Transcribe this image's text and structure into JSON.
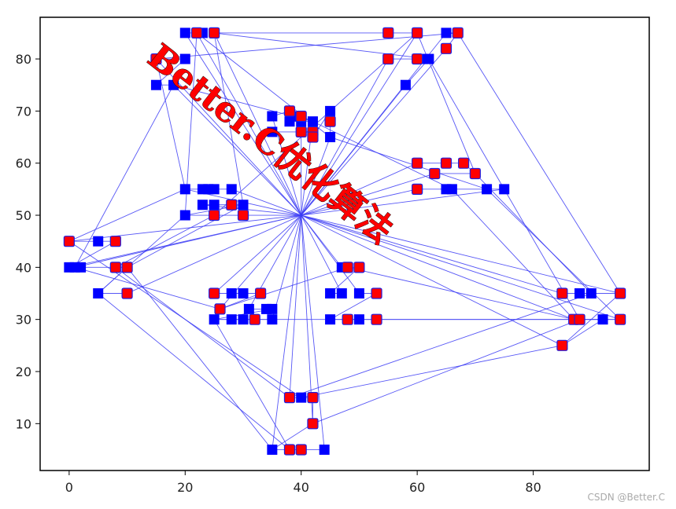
{
  "chart_data": {
    "type": "scatter",
    "title": "",
    "xlabel": "",
    "ylabel": "",
    "xlim": [
      -5,
      100
    ],
    "ylim": [
      1,
      88
    ],
    "xticks": [
      "0",
      "20",
      "40",
      "60",
      "80"
    ],
    "yticks": [
      "10",
      "20",
      "30",
      "40",
      "50",
      "60",
      "70",
      "80"
    ],
    "grid": false,
    "depot": [
      40,
      50
    ],
    "series": [
      {
        "role": "customer",
        "marker": "square",
        "color": "#0000ff",
        "points": [
          [
            20,
            85
          ],
          [
            22,
            85
          ],
          [
            23,
            85
          ],
          [
            25,
            85
          ],
          [
            55,
            85
          ],
          [
            60,
            85
          ],
          [
            65,
            85
          ],
          [
            67,
            85
          ],
          [
            15,
            80
          ],
          [
            20,
            80
          ],
          [
            55,
            80
          ],
          [
            60,
            80
          ],
          [
            61,
            80
          ],
          [
            62,
            80
          ],
          [
            65,
            82
          ],
          [
            15,
            75
          ],
          [
            18,
            75
          ],
          [
            58,
            75
          ],
          [
            35,
            69
          ],
          [
            38,
            70
          ],
          [
            39,
            69
          ],
          [
            38,
            68
          ],
          [
            40,
            68
          ],
          [
            42,
            68
          ],
          [
            40,
            66
          ],
          [
            35,
            66
          ],
          [
            42,
            66
          ],
          [
            42,
            65
          ],
          [
            45,
            70
          ],
          [
            45,
            68
          ],
          [
            45,
            65
          ],
          [
            60,
            60
          ],
          [
            65,
            60
          ],
          [
            68,
            60
          ],
          [
            70,
            58
          ],
          [
            63,
            58
          ],
          [
            60,
            55
          ],
          [
            65,
            55
          ],
          [
            66,
            55
          ],
          [
            72,
            55
          ],
          [
            75,
            55
          ],
          [
            20,
            55
          ],
          [
            23,
            55
          ],
          [
            24,
            55
          ],
          [
            25,
            55
          ],
          [
            28,
            55
          ],
          [
            23,
            52
          ],
          [
            25,
            52
          ],
          [
            28,
            52
          ],
          [
            30,
            52
          ],
          [
            20,
            50
          ],
          [
            25,
            50
          ],
          [
            30,
            50
          ],
          [
            0,
            45
          ],
          [
            5,
            45
          ],
          [
            8,
            45
          ],
          [
            0,
            40
          ],
          [
            1,
            40
          ],
          [
            2,
            40
          ],
          [
            8,
            40
          ],
          [
            10,
            40
          ],
          [
            5,
            35
          ],
          [
            10,
            35
          ],
          [
            47,
            40
          ],
          [
            48,
            40
          ],
          [
            50,
            40
          ],
          [
            45,
            35
          ],
          [
            47,
            35
          ],
          [
            50,
            35
          ],
          [
            53,
            35
          ],
          [
            45,
            30
          ],
          [
            48,
            30
          ],
          [
            50,
            30
          ],
          [
            53,
            30
          ],
          [
            25,
            35
          ],
          [
            28,
            35
          ],
          [
            30,
            35
          ],
          [
            33,
            35
          ],
          [
            26,
            32
          ],
          [
            31,
            32
          ],
          [
            34,
            32
          ],
          [
            35,
            32
          ],
          [
            25,
            30
          ],
          [
            28,
            30
          ],
          [
            30,
            30
          ],
          [
            32,
            30
          ],
          [
            35,
            30
          ],
          [
            85,
            35
          ],
          [
            88,
            35
          ],
          [
            90,
            35
          ],
          [
            95,
            35
          ],
          [
            87,
            30
          ],
          [
            88,
            30
          ],
          [
            92,
            30
          ],
          [
            95,
            30
          ],
          [
            85,
            25
          ],
          [
            38,
            15
          ],
          [
            40,
            15
          ],
          [
            42,
            15
          ],
          [
            42,
            10
          ],
          [
            35,
            5
          ],
          [
            38,
            5
          ],
          [
            40,
            5
          ],
          [
            44,
            5
          ]
        ]
      },
      {
        "role": "selected",
        "marker": "square",
        "color": "#ff0000",
        "points": [
          [
            22,
            85
          ],
          [
            25,
            85
          ],
          [
            55,
            85
          ],
          [
            60,
            85
          ],
          [
            67,
            85
          ],
          [
            15,
            80
          ],
          [
            55,
            80
          ],
          [
            60,
            80
          ],
          [
            65,
            82
          ],
          [
            38,
            70
          ],
          [
            40,
            69
          ],
          [
            40,
            66
          ],
          [
            42,
            66
          ],
          [
            42,
            65
          ],
          [
            45,
            68
          ],
          [
            60,
            60
          ],
          [
            65,
            60
          ],
          [
            68,
            60
          ],
          [
            70,
            58
          ],
          [
            63,
            58
          ],
          [
            60,
            55
          ],
          [
            28,
            52
          ],
          [
            25,
            50
          ],
          [
            30,
            50
          ],
          [
            0,
            45
          ],
          [
            8,
            45
          ],
          [
            8,
            40
          ],
          [
            10,
            40
          ],
          [
            10,
            35
          ],
          [
            48,
            40
          ],
          [
            50,
            40
          ],
          [
            53,
            35
          ],
          [
            48,
            30
          ],
          [
            53,
            30
          ],
          [
            25,
            35
          ],
          [
            26,
            32
          ],
          [
            33,
            35
          ],
          [
            32,
            30
          ],
          [
            85,
            35
          ],
          [
            95,
            35
          ],
          [
            87,
            30
          ],
          [
            88,
            30
          ],
          [
            95,
            30
          ],
          [
            85,
            25
          ],
          [
            38,
            15
          ],
          [
            42,
            15
          ],
          [
            42,
            10
          ],
          [
            38,
            5
          ],
          [
            40,
            5
          ]
        ]
      }
    ],
    "routes": [
      [
        [
          40,
          50
        ],
        [
          20,
          85
        ],
        [
          23,
          85
        ],
        [
          22,
          85
        ],
        [
          40,
          50
        ]
      ],
      [
        [
          40,
          50
        ],
        [
          25,
          85
        ],
        [
          55,
          85
        ],
        [
          60,
          85
        ],
        [
          40,
          50
        ]
      ],
      [
        [
          40,
          50
        ],
        [
          65,
          85
        ],
        [
          67,
          85
        ],
        [
          65,
          82
        ],
        [
          40,
          50
        ]
      ],
      [
        [
          40,
          50
        ],
        [
          15,
          80
        ],
        [
          20,
          80
        ],
        [
          15,
          75
        ],
        [
          18,
          75
        ],
        [
          40,
          50
        ]
      ],
      [
        [
          40,
          50
        ],
        [
          55,
          80
        ],
        [
          60,
          80
        ],
        [
          61,
          80
        ],
        [
          62,
          80
        ],
        [
          58,
          75
        ],
        [
          40,
          50
        ]
      ],
      [
        [
          40,
          50
        ],
        [
          35,
          69
        ],
        [
          38,
          70
        ],
        [
          39,
          69
        ],
        [
          38,
          68
        ],
        [
          40,
          68
        ],
        [
          42,
          68
        ],
        [
          40,
          50
        ]
      ],
      [
        [
          40,
          50
        ],
        [
          40,
          66
        ],
        [
          35,
          66
        ],
        [
          42,
          66
        ],
        [
          42,
          65
        ],
        [
          45,
          70
        ],
        [
          45,
          68
        ],
        [
          45,
          65
        ],
        [
          40,
          50
        ]
      ],
      [
        [
          40,
          50
        ],
        [
          60,
          60
        ],
        [
          65,
          60
        ],
        [
          68,
          60
        ],
        [
          70,
          58
        ],
        [
          63,
          58
        ],
        [
          40,
          50
        ]
      ],
      [
        [
          40,
          50
        ],
        [
          60,
          55
        ],
        [
          65,
          55
        ],
        [
          66,
          55
        ],
        [
          72,
          55
        ],
        [
          75,
          55
        ],
        [
          40,
          50
        ]
      ],
      [
        [
          40,
          50
        ],
        [
          20,
          55
        ],
        [
          23,
          55
        ],
        [
          24,
          55
        ],
        [
          25,
          55
        ],
        [
          28,
          55
        ],
        [
          40,
          50
        ]
      ],
      [
        [
          40,
          50
        ],
        [
          23,
          52
        ],
        [
          25,
          52
        ],
        [
          28,
          52
        ],
        [
          30,
          52
        ],
        [
          20,
          50
        ],
        [
          25,
          50
        ],
        [
          30,
          50
        ],
        [
          40,
          50
        ]
      ],
      [
        [
          40,
          50
        ],
        [
          0,
          45
        ],
        [
          5,
          45
        ],
        [
          8,
          45
        ],
        [
          0,
          40
        ],
        [
          40,
          50
        ]
      ],
      [
        [
          40,
          50
        ],
        [
          1,
          40
        ],
        [
          2,
          40
        ],
        [
          8,
          40
        ],
        [
          10,
          40
        ],
        [
          5,
          35
        ],
        [
          10,
          35
        ],
        [
          40,
          50
        ]
      ],
      [
        [
          40,
          50
        ],
        [
          47,
          40
        ],
        [
          48,
          40
        ],
        [
          50,
          40
        ],
        [
          45,
          35
        ],
        [
          47,
          35
        ],
        [
          40,
          50
        ]
      ],
      [
        [
          40,
          50
        ],
        [
          50,
          35
        ],
        [
          53,
          35
        ],
        [
          45,
          30
        ],
        [
          48,
          30
        ],
        [
          50,
          30
        ],
        [
          53,
          30
        ],
        [
          95,
          30
        ],
        [
          40,
          50
        ]
      ],
      [
        [
          40,
          50
        ],
        [
          25,
          35
        ],
        [
          28,
          35
        ],
        [
          30,
          35
        ],
        [
          33,
          35
        ],
        [
          26,
          32
        ],
        [
          40,
          50
        ]
      ],
      [
        [
          40,
          50
        ],
        [
          31,
          32
        ],
        [
          34,
          32
        ],
        [
          35,
          32
        ],
        [
          25,
          30
        ],
        [
          28,
          30
        ],
        [
          30,
          30
        ],
        [
          32,
          30
        ],
        [
          35,
          30
        ],
        [
          40,
          50
        ]
      ],
      [
        [
          40,
          50
        ],
        [
          85,
          35
        ],
        [
          88,
          35
        ],
        [
          90,
          35
        ],
        [
          95,
          35
        ],
        [
          40,
          50
        ]
      ],
      [
        [
          40,
          50
        ],
        [
          87,
          30
        ],
        [
          88,
          30
        ],
        [
          92,
          30
        ],
        [
          85,
          25
        ],
        [
          40,
          50
        ]
      ],
      [
        [
          40,
          50
        ],
        [
          38,
          15
        ],
        [
          40,
          15
        ],
        [
          42,
          15
        ],
        [
          42,
          10
        ],
        [
          40,
          50
        ]
      ],
      [
        [
          40,
          50
        ],
        [
          35,
          5
        ],
        [
          38,
          5
        ],
        [
          40,
          5
        ],
        [
          44,
          5
        ],
        [
          40,
          50
        ]
      ],
      [
        [
          15,
          80
        ],
        [
          20,
          55
        ],
        [
          0,
          45
        ],
        [
          40,
          15
        ],
        [
          85,
          25
        ],
        [
          95,
          35
        ],
        [
          67,
          85
        ],
        [
          15,
          80
        ]
      ],
      [
        [
          25,
          85
        ],
        [
          30,
          52
        ],
        [
          10,
          40
        ],
        [
          35,
          5
        ],
        [
          42,
          10
        ],
        [
          88,
          30
        ],
        [
          75,
          55
        ],
        [
          62,
          80
        ],
        [
          25,
          85
        ]
      ],
      [
        [
          22,
          85
        ],
        [
          45,
          65
        ],
        [
          72,
          55
        ],
        [
          95,
          30
        ],
        [
          53,
          30
        ],
        [
          25,
          30
        ],
        [
          38,
          5
        ],
        [
          5,
          35
        ],
        [
          20,
          50
        ],
        [
          22,
          85
        ]
      ],
      [
        [
          60,
          85
        ],
        [
          45,
          70
        ],
        [
          25,
          50
        ],
        [
          8,
          40
        ],
        [
          38,
          15
        ],
        [
          90,
          35
        ],
        [
          70,
          58
        ],
        [
          60,
          85
        ]
      ],
      [
        [
          18,
          75
        ],
        [
          42,
          68
        ],
        [
          66,
          55
        ],
        [
          87,
          30
        ],
        [
          48,
          40
        ],
        [
          26,
          32
        ],
        [
          1,
          40
        ],
        [
          18,
          75
        ]
      ]
    ],
    "colors": {
      "route": "#3a3af5",
      "customer": "#0000ff",
      "selected": "#ff0000"
    }
  },
  "watermark": {
    "text": "Better.C优化算法",
    "color": "#ff0000"
  },
  "credit": "CSDN @Better.C"
}
